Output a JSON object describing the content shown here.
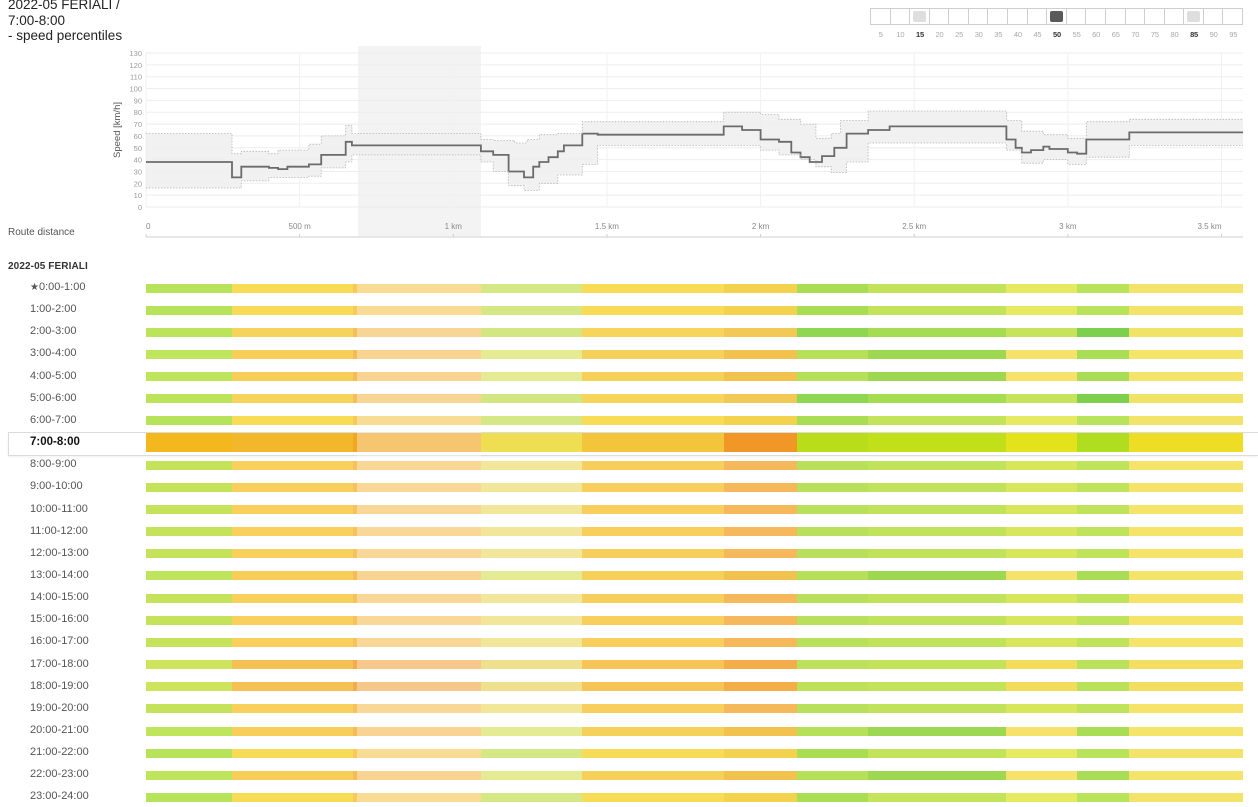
{
  "header": {
    "title_line1": "2022-05 FERIALI /",
    "title_line2": "7:00-8:00",
    "title_line3": "- speed percentiles"
  },
  "percentile_selector": {
    "options": [
      "5",
      "10",
      "15",
      "20",
      "25",
      "30",
      "35",
      "40",
      "45",
      "50",
      "55",
      "60",
      "65",
      "70",
      "75",
      "80",
      "85",
      "90",
      "95"
    ],
    "selected": "50",
    "band_low": "15",
    "band_high": "85",
    "colors": {
      "selected": "#5a5a5a",
      "band": "#dedede"
    }
  },
  "chart_data": {
    "type": "line",
    "ylabel": "Speed [km/h]",
    "y_ticks": [
      0,
      10,
      20,
      30,
      40,
      50,
      60,
      70,
      80,
      90,
      100,
      110,
      120,
      130
    ],
    "ylim": [
      0,
      130
    ],
    "x_tick_labels": [
      "0",
      "500 m",
      "1 km",
      "1.5 km",
      "2 km",
      "2.5 km",
      "3 km",
      "3.5 km"
    ],
    "x_ticks_m": [
      0,
      500,
      1000,
      1500,
      2000,
      2500,
      3000,
      3500
    ],
    "xlim": [
      0,
      3570
    ],
    "grid": true,
    "series": [
      {
        "role": "p50",
        "x": [
          0,
          280,
          280,
          310,
          310,
          400,
          400,
          430,
          430,
          460,
          460,
          530,
          530,
          570,
          570,
          650,
          650,
          670,
          670,
          1090,
          1090,
          1130,
          1130,
          1180,
          1180,
          1230,
          1230,
          1260,
          1260,
          1280,
          1280,
          1310,
          1310,
          1340,
          1340,
          1360,
          1360,
          1420,
          1420,
          1470,
          1470,
          1880,
          1880,
          1940,
          1940,
          2000,
          2000,
          2060,
          2060,
          2100,
          2100,
          2130,
          2130,
          2160,
          2160,
          2200,
          2200,
          2240,
          2240,
          2280,
          2280,
          2350,
          2350,
          2420,
          2420,
          2460,
          2460,
          2800,
          2800,
          2830,
          2830,
          2850,
          2850,
          2880,
          2880,
          2920,
          2920,
          2940,
          2940,
          3000,
          3000,
          3030,
          3030,
          3060,
          3060,
          3200,
          3200,
          3570
        ],
        "y": [
          38,
          38,
          25,
          25,
          34,
          34,
          33,
          33,
          32,
          32,
          34,
          34,
          36,
          36,
          44,
          44,
          55,
          55,
          52,
          52,
          47,
          47,
          44,
          44,
          30,
          30,
          25,
          25,
          34,
          34,
          38,
          38,
          42,
          42,
          47,
          47,
          52,
          52,
          62,
          62,
          61,
          61,
          68,
          68,
          65,
          65,
          57,
          57,
          55,
          55,
          46,
          46,
          42,
          42,
          38,
          38,
          43,
          43,
          50,
          50,
          62,
          62,
          65,
          65,
          68,
          68,
          68,
          68,
          57,
          57,
          50,
          50,
          46,
          46,
          48,
          48,
          51,
          51,
          49,
          49,
          46,
          46,
          45,
          45,
          57,
          57,
          63,
          63
        ]
      },
      {
        "role": "p85",
        "x": [
          0,
          280,
          280,
          310,
          310,
          400,
          400,
          430,
          430,
          530,
          530,
          570,
          570,
          650,
          650,
          670,
          670,
          1090,
          1090,
          1130,
          1130,
          1200,
          1200,
          1240,
          1240,
          1280,
          1280,
          1340,
          1340,
          1420,
          1420,
          1470,
          1470,
          1880,
          1880,
          2000,
          2000,
          2060,
          2060,
          2130,
          2130,
          2180,
          2180,
          2230,
          2230,
          2260,
          2260,
          2350,
          2350,
          2800,
          2800,
          2850,
          2850,
          2920,
          2920,
          3000,
          3000,
          3060,
          3060,
          3200,
          3200,
          3570
        ],
        "y": [
          62,
          62,
          45,
          45,
          47,
          47,
          45,
          45,
          48,
          48,
          53,
          53,
          60,
          60,
          69,
          69,
          62,
          62,
          57,
          57,
          56,
          56,
          54,
          54,
          57,
          57,
          61,
          61,
          62,
          62,
          72,
          72,
          72,
          72,
          80,
          80,
          78,
          78,
          74,
          74,
          70,
          70,
          58,
          58,
          62,
          62,
          73,
          73,
          81,
          81,
          73,
          73,
          64,
          64,
          61,
          61,
          58,
          58,
          72,
          72,
          74,
          74
        ]
      },
      {
        "role": "p15",
        "x": [
          0,
          280,
          280,
          310,
          310,
          400,
          400,
          530,
          530,
          570,
          570,
          650,
          650,
          670,
          670,
          1090,
          1090,
          1130,
          1130,
          1180,
          1180,
          1230,
          1230,
          1280,
          1280,
          1340,
          1340,
          1420,
          1420,
          1470,
          1470,
          1880,
          1880,
          2000,
          2000,
          2060,
          2060,
          2130,
          2130,
          2180,
          2180,
          2230,
          2230,
          2280,
          2280,
          2350,
          2350,
          2800,
          2800,
          2850,
          2850,
          2920,
          2920,
          3000,
          3000,
          3060,
          3060,
          3200,
          3200,
          3570
        ],
        "y": [
          16,
          16,
          16,
          16,
          22,
          22,
          25,
          25,
          26,
          26,
          33,
          33,
          38,
          38,
          44,
          44,
          38,
          38,
          30,
          30,
          18,
          18,
          14,
          14,
          20,
          20,
          27,
          27,
          36,
          36,
          52,
          52,
          52,
          52,
          48,
          48,
          44,
          44,
          40,
          40,
          34,
          34,
          29,
          29,
          38,
          38,
          54,
          54,
          48,
          48,
          37,
          37,
          40,
          40,
          36,
          36,
          42,
          42,
          52,
          52
        ]
      }
    ]
  },
  "route_distance_label": "Route distance",
  "section_label": "2022-05 FERIALI",
  "favorite_icon": "star-icon",
  "rows": [
    {
      "label": "0:00-1:00",
      "favorite": true,
      "palette": "A"
    },
    {
      "label": "1:00-2:00",
      "palette": "A"
    },
    {
      "label": "2:00-3:00",
      "palette": "B"
    },
    {
      "label": "3:00-4:00",
      "palette": "C"
    },
    {
      "label": "4:00-5:00",
      "palette": "C"
    },
    {
      "label": "5:00-6:00",
      "palette": "B"
    },
    {
      "label": "6:00-7:00",
      "palette": "A"
    },
    {
      "label": "7:00-8:00",
      "palette": "SEL",
      "selected": true
    },
    {
      "label": "8:00-9:00",
      "palette": "D"
    },
    {
      "label": "9:00-10:00",
      "palette": "D"
    },
    {
      "label": "10:00-11:00",
      "palette": "D"
    },
    {
      "label": "11:00-12:00",
      "palette": "D"
    },
    {
      "label": "12:00-13:00",
      "palette": "D"
    },
    {
      "label": "13:00-14:00",
      "palette": "C"
    },
    {
      "label": "14:00-15:00",
      "palette": "D"
    },
    {
      "label": "15:00-16:00",
      "palette": "D"
    },
    {
      "label": "16:00-17:00",
      "palette": "D"
    },
    {
      "label": "17:00-18:00",
      "palette": "E"
    },
    {
      "label": "18:00-19:00",
      "palette": "E"
    },
    {
      "label": "19:00-20:00",
      "palette": "D"
    },
    {
      "label": "20:00-21:00",
      "palette": "C"
    },
    {
      "label": "21:00-22:00",
      "palette": "A"
    },
    {
      "label": "22:00-23:00",
      "palette": "C"
    },
    {
      "label": "23:00-24:00",
      "palette": "A"
    }
  ],
  "palettes": {
    "A": [
      "#b7e35b",
      "#f8dc55",
      "#f6c95a",
      "#d6e785",
      "#f8dc55",
      "#f3d24d",
      "#a9dd54",
      "#c3e35a",
      "#e6ea60",
      "#b9e35a",
      "#f4e36a",
      "#bfe55c"
    ],
    "B": [
      "#bbe45a",
      "#f6d35a",
      "#f3bf5b",
      "#d4e682",
      "#f6d55a",
      "#f2c956",
      "#8fd750",
      "#a5dd52",
      "#c7e35b",
      "#7dd04d",
      "#f1e366",
      "#bde45c"
    ],
    "C": [
      "#bfe55c",
      "#f7cf58",
      "#f4bc58",
      "#e4eb93",
      "#f6d159",
      "#f2c24f",
      "#b6e058",
      "#9ed853",
      "#f6e16a",
      "#aadd56",
      "#f4e56a",
      "#f8df60"
    ],
    "D": [
      "#c4e35b",
      "#f9d05c",
      "#f6c25e",
      "#f2e69a",
      "#f8ce5c",
      "#f5b85a",
      "#b9e05a",
      "#c0e35b",
      "#d7e65b",
      "#bfe35b",
      "#f6e36a",
      "#c1e45c"
    ],
    "E": [
      "#ceE45c",
      "#f6c154",
      "#f2ab4e",
      "#efe08e",
      "#f6c556",
      "#f3ad49",
      "#bde15a",
      "#c3e35b",
      "#f2dc5a",
      "#b9e15a",
      "#f4de62",
      "#c6e45c"
    ],
    "SEL": [
      "#f2b81d",
      "#f3b72b",
      "#f0a822",
      "#f0de52",
      "#f3c53b",
      "#f09727",
      "#b9dc1b",
      "#c2e01a",
      "#e4e21b",
      "#b0dd1f",
      "#eedd25",
      "#b4df23"
    ]
  },
  "row_segments_m": [
    0,
    280,
    675,
    1090,
    1420,
    1880,
    2120,
    2350,
    2800,
    3030,
    3200,
    3570
  ]
}
